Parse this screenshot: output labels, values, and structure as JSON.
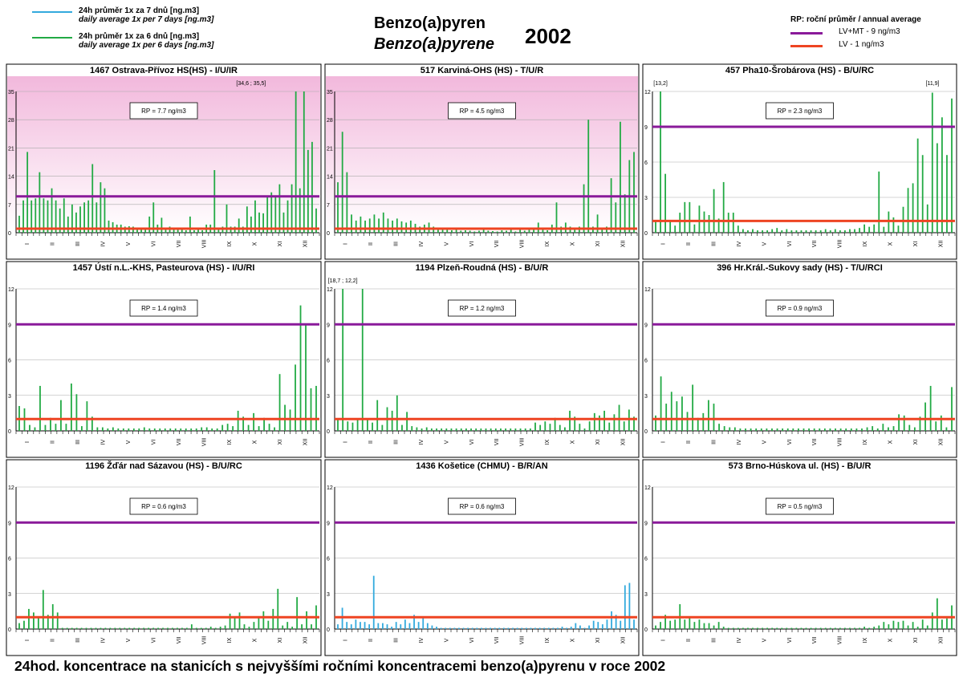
{
  "legend": {
    "series_7days": {
      "cz": "24h průměr 1x za 7 dnů [ng.m3]",
      "en": "daily average 1x per 7 days [ng.m3]",
      "color": "#33aadd"
    },
    "series_6days": {
      "cz": "24h průměr 1x za 6 dnů [ng.m3]",
      "en": "daily average 1x per 6 days [ng.m3]",
      "color": "#22aa44"
    }
  },
  "title": {
    "cz": "Benzo(a)pyren",
    "en": "Benzo(a)pyrene",
    "year": "2002"
  },
  "rp_legend": {
    "heading": "RP:  roční průměr / annual average",
    "lv_mt": {
      "label": "LV+MT  - 9 ng/m3",
      "color": "#8a1a9a"
    },
    "lv": {
      "label": "LV    - 1 ng/m3",
      "color": "#ee4422"
    }
  },
  "footer": "24hod. koncentrace na stanicích s nejvyššími ročními koncentracemi benzo(a)pyrenu v roce 2002",
  "chart_data": [
    {
      "type": "bar",
      "title": "1467 Ostrava-Přívoz HS(HS) - I/U/IR",
      "rp": "RP = 7.7 ng/m3",
      "ylim": [
        0,
        35
      ],
      "yticks": [
        0,
        7,
        14,
        21,
        28,
        35
      ],
      "pink": true,
      "series_color": "#22aa44",
      "lv_mt": 9,
      "lv": 1,
      "annotations": [
        {
          "text": "[34,6 ; 35,5]",
          "x_index": 57
        }
      ],
      "values": [
        4.2,
        8,
        20,
        8,
        8.5,
        15,
        8.5,
        8,
        11,
        8,
        6,
        8.5,
        4,
        7,
        5,
        6.5,
        7.5,
        8,
        17,
        7.5,
        12.5,
        11,
        3,
        2.6,
        2,
        2,
        1.5,
        1.6,
        1.5,
        1.2,
        0.8,
        1,
        4,
        7.5,
        2,
        3.7,
        1,
        1.5,
        0.7,
        0.7,
        0.8,
        0.6,
        4,
        0.6,
        1.2,
        0.6,
        2,
        2,
        15.5,
        1,
        1.5,
        7,
        1.5,
        1.5,
        3.5,
        1.5,
        6.5,
        4,
        8,
        5,
        4.8,
        9,
        10,
        9,
        12,
        5,
        8,
        12,
        35,
        11,
        35.5,
        20.5,
        22.5,
        6
      ]
    },
    {
      "type": "bar",
      "title": "517 Karviná-OHS (HS) - T/U/R",
      "rp": "RP = 4.5 ng/m3",
      "ylim": [
        0,
        35
      ],
      "yticks": [
        0,
        7,
        14,
        21,
        28,
        35
      ],
      "pink": true,
      "series_color": "#22aa44",
      "lv_mt": 9,
      "lv": 1,
      "values": [
        12.5,
        25,
        15,
        4.5,
        3,
        4,
        3,
        3.5,
        4.5,
        3.5,
        5,
        3.5,
        3,
        3.5,
        2.8,
        2.5,
        3,
        2.2,
        1.5,
        2,
        2.5,
        1.5,
        1.2,
        1,
        0.8,
        0.6,
        0.8,
        0.5,
        0.6,
        0.5,
        0.3,
        0.5,
        0.8,
        0.5,
        0.4,
        0.3,
        0.6,
        0.5,
        0.8,
        0.3,
        1,
        0.5,
        0.8,
        1,
        2.5,
        1,
        0.6,
        2,
        7.5,
        1.5,
        2.5,
        1.5,
        1,
        1.5,
        12,
        28,
        1.5,
        4.5,
        1,
        1.5,
        13.5,
        7.5,
        27.5,
        9.5,
        18,
        20
      ]
    },
    {
      "type": "bar",
      "title": "457 Pha10-Šrobárova (HS) - B/U/RC",
      "rp": "RP = 2.3 ng/m3",
      "ylim": [
        0,
        12
      ],
      "yticks": [
        0,
        3,
        6,
        9,
        12
      ],
      "pink": false,
      "series_color": "#22aa44",
      "lv_mt": 9,
      "lv": 1,
      "annotations": [
        {
          "text": "[13,2]",
          "x_index": 1
        },
        {
          "text": "[11,9]",
          "x_index": 58
        }
      ],
      "values": [
        1,
        12,
        5,
        1,
        0.6,
        1.7,
        2.6,
        2.6,
        0.7,
        2.3,
        1.8,
        1.5,
        3.7,
        1.2,
        4.3,
        1.7,
        1.7,
        0.6,
        0.3,
        0.2,
        0.3,
        0.2,
        0.2,
        0.2,
        0.3,
        0.4,
        0.2,
        0.3,
        0.2,
        0.2,
        0.2,
        0.2,
        0.2,
        0.2,
        0.2,
        0.3,
        0.2,
        0.3,
        0.2,
        0.2,
        0.3,
        0.3,
        0.4,
        0.7,
        0.5,
        0.7,
        5.2,
        0.5,
        1.8,
        1.3,
        0.6,
        2.2,
        3.8,
        4.2,
        8,
        6.6,
        2.4,
        11.9,
        7.6,
        9.8,
        6.6,
        11.4
      ]
    },
    {
      "type": "bar",
      "title": "1457 Ústí n.L.-KHS, Pasteurova (HS) - I/U/RI",
      "rp": "RP = 1.4 ng/m3",
      "ylim": [
        0,
        12
      ],
      "yticks": [
        0,
        3,
        6,
        9,
        12
      ],
      "pink": false,
      "series_color": "#22aa44",
      "lv_mt": 9,
      "lv": 1,
      "values": [
        2.1,
        1.9,
        0.5,
        0.3,
        3.8,
        0.5,
        1.1,
        0.6,
        2.6,
        0.6,
        4,
        3.1,
        0.4,
        2.5,
        1.2,
        0.3,
        0.3,
        0.2,
        0.3,
        0.2,
        0.2,
        0.2,
        0.2,
        0.2,
        0.3,
        0.2,
        0.2,
        0.2,
        0.2,
        0.2,
        0.2,
        0.2,
        0.2,
        0.2,
        0.2,
        0.3,
        0.3,
        0.2,
        0.2,
        0.5,
        0.6,
        0.4,
        1.7,
        1.2,
        0.5,
        1.5,
        0.4,
        1.1,
        0.6,
        0.3,
        4.8,
        2.2,
        1.8,
        5.6,
        10.6,
        9,
        3.6,
        3.8
      ]
    },
    {
      "type": "bar",
      "title": "1194 Plzeň-Roudná (HS) - B/U/R",
      "rp": "RP = 1.2 ng/m3",
      "ylim": [
        0,
        12
      ],
      "yticks": [
        0,
        3,
        6,
        9,
        12
      ],
      "pink": false,
      "series_color": "#22aa44",
      "lv_mt": 9,
      "lv": 1,
      "annotations": [
        {
          "text": "[18,7 ; 12,2]",
          "x_index": 1
        }
      ],
      "values": [
        1,
        12,
        0.8,
        0.7,
        1,
        12,
        1,
        0.7,
        2.6,
        0.5,
        2,
        1.7,
        3,
        0.5,
        1.6,
        0.4,
        0.3,
        0.2,
        0.3,
        0.2,
        0.2,
        0.2,
        0.2,
        0.2,
        0.2,
        0.2,
        0.2,
        0.2,
        0.2,
        0.2,
        0.2,
        0.2,
        0.2,
        0.2,
        0.2,
        0.2,
        0.2,
        0.2,
        0.2,
        0.2,
        0.7,
        0.5,
        0.8,
        0.6,
        1.1,
        0.5,
        0.3,
        1.7,
        1.2,
        0.6,
        0.2,
        0.8,
        1.5,
        1.3,
        1.7,
        0.7,
        1.4,
        2.2,
        0.8,
        1.8,
        1.2
      ]
    },
    {
      "type": "bar",
      "title": "396 Hr.Král.-Sukovy sady (HS) - T/U/RCI",
      "rp": "RP = 0.9 ng/m3",
      "ylim": [
        0,
        12
      ],
      "yticks": [
        0,
        3,
        6,
        9,
        12
      ],
      "pink": false,
      "series_color": "#22aa44",
      "lv_mt": 9,
      "lv": 1,
      "values": [
        1.3,
        4.6,
        2.3,
        3.3,
        2.5,
        2.9,
        1.6,
        3.9,
        1.1,
        1.5,
        2.6,
        2.3,
        0.6,
        0.4,
        0.3,
        0.3,
        0.2,
        0.2,
        0.2,
        0.2,
        0.2,
        0.2,
        0.2,
        0.2,
        0.2,
        0.2,
        0.2,
        0.2,
        0.2,
        0.2,
        0.2,
        0.2,
        0.2,
        0.2,
        0.2,
        0.2,
        0.2,
        0.2,
        0.2,
        0.2,
        0.3,
        0.4,
        0.2,
        0.6,
        0.3,
        0.4,
        1.4,
        1.3,
        0.5,
        0.3,
        1.2,
        2.4,
        3.8,
        0.8,
        1.3,
        0.3,
        3.7
      ]
    },
    {
      "type": "bar",
      "title": "1196 Žďár nad Sázavou (HS) - B/U/RC",
      "rp": "RP = 0.6 ng/m3",
      "ylim": [
        0,
        12
      ],
      "yticks": [
        0,
        3,
        6,
        9,
        12
      ],
      "pink": false,
      "series_color": "#22aa44",
      "lv_mt": 9,
      "lv": 1,
      "values": [
        0.5,
        0.7,
        1.7,
        1.4,
        1,
        3.3,
        1.2,
        2.1,
        1.4,
        0.1,
        0.1,
        0.1,
        0.1,
        0.1,
        0.1,
        0.1,
        0.1,
        0.1,
        0.1,
        0.1,
        0.1,
        0.1,
        0.1,
        0.1,
        0.1,
        0.1,
        0.1,
        0.1,
        0.1,
        0.1,
        0.1,
        0.1,
        0.1,
        0.1,
        0.1,
        0.1,
        0.4,
        0.1,
        0.1,
        0.1,
        0.2,
        0.1,
        0.2,
        0.3,
        1.3,
        1,
        1.4,
        0.4,
        0.2,
        0.6,
        1,
        1.5,
        0.7,
        1.7,
        3.4,
        0.3,
        0.6,
        0.2,
        2.7,
        0.4,
        1.5,
        0.4,
        2
      ]
    },
    {
      "type": "bar",
      "title": "1436 Košetice (CHMU) - B/R/AN",
      "rp": "RP = 0.6 ng/m3",
      "ylim": [
        0,
        12
      ],
      "yticks": [
        0,
        3,
        6,
        9,
        12
      ],
      "pink": false,
      "series_color": "#33aadd",
      "lv_mt": 9,
      "lv": 1,
      "values": [
        0.4,
        1.8,
        0.6,
        0.4,
        0.8,
        0.6,
        0.6,
        0.4,
        4.5,
        0.5,
        0.5,
        0.4,
        0.2,
        0.6,
        0.4,
        0.8,
        0.5,
        1.2,
        0.6,
        1,
        0.5,
        0.3,
        0.2,
        0.1,
        0.1,
        0.1,
        0.1,
        0.1,
        0.1,
        0.1,
        0.1,
        0.1,
        0.1,
        0.1,
        0.1,
        0.1,
        0.1,
        0.1,
        0.1,
        0.1,
        0.1,
        0.1,
        0.1,
        0.1,
        0.1,
        0.1,
        0.1,
        0.1,
        0.1,
        0.1,
        0.2,
        0.1,
        0.2,
        0.5,
        0.3,
        0.1,
        0.3,
        0.7,
        0.6,
        0.4,
        0.8,
        1.5,
        1.2,
        0.7,
        3.7,
        3.9,
        0.8
      ]
    },
    {
      "type": "bar",
      "title": "573 Brno-Húskova ul. (HS) - B/U/R",
      "rp": "RP = 0.5 ng/m3",
      "ylim": [
        0,
        12
      ],
      "yticks": [
        0,
        3,
        6,
        9,
        12
      ],
      "pink": false,
      "series_color": "#22aa44",
      "lv_mt": 9,
      "lv": 1,
      "values": [
        0.3,
        0.6,
        1.2,
        0.7,
        0.8,
        2.1,
        0.8,
        1,
        0.6,
        0.8,
        0.5,
        0.5,
        0.3,
        0.6,
        0.2,
        0.1,
        0.1,
        0.1,
        0.1,
        0.1,
        0.1,
        0.1,
        0.1,
        0.1,
        0.1,
        0.1,
        0.1,
        0.1,
        0.1,
        0.1,
        0.1,
        0.1,
        0.1,
        0.1,
        0.1,
        0.1,
        0.1,
        0.1,
        0.1,
        0.1,
        0.1,
        0.1,
        0.1,
        0.2,
        0.1,
        0.2,
        0.3,
        0.6,
        0.4,
        0.7,
        0.6,
        0.7,
        0.3,
        0.6,
        0.2,
        0.8,
        0.3,
        1.4,
        2.6,
        0.8,
        0.9,
        2
      ]
    }
  ],
  "months": [
    "I",
    "II",
    "III",
    "IV",
    "V",
    "VI",
    "VII",
    "VIII",
    "IX",
    "X",
    "XI",
    "XII"
  ]
}
